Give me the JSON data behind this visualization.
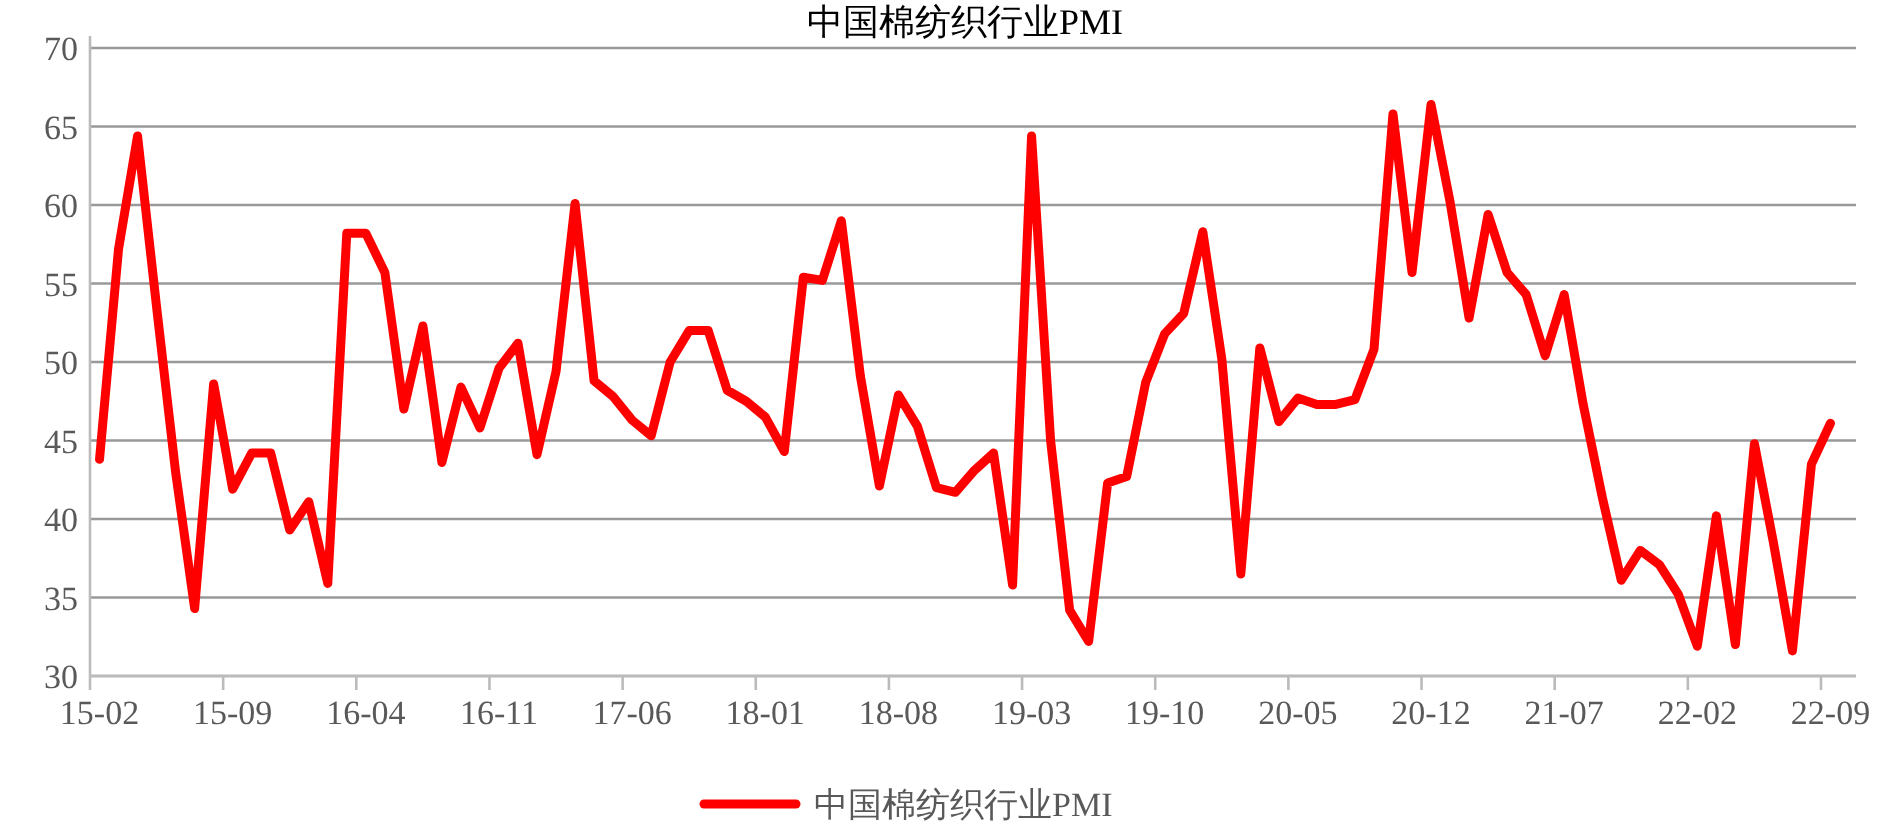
{
  "chart_data": {
    "type": "line",
    "title": "中国棉纺织行业PMI",
    "categories": [
      "15-02",
      null,
      null,
      null,
      null,
      null,
      null,
      "15-09",
      null,
      null,
      null,
      null,
      null,
      null,
      "16-04",
      null,
      null,
      null,
      null,
      null,
      null,
      "16-11",
      null,
      null,
      null,
      null,
      null,
      null,
      "17-06",
      null,
      null,
      null,
      null,
      null,
      null,
      "18-01",
      null,
      null,
      null,
      null,
      null,
      null,
      "18-08",
      null,
      null,
      null,
      null,
      null,
      null,
      "19-03",
      null,
      null,
      null,
      null,
      null,
      null,
      "19-10",
      null,
      null,
      null,
      null,
      null,
      null,
      "20-05",
      null,
      null,
      null,
      null,
      null,
      null,
      "20-12",
      null,
      null,
      null,
      null,
      null,
      null,
      "21-07",
      null,
      null,
      null,
      null,
      null,
      null,
      "22-02",
      null,
      null,
      null,
      null,
      null,
      null,
      "22-09"
    ],
    "series": [
      {
        "name": "中国棉纺织行业PMI",
        "color": "#ff0000",
        "values": [
          43.8,
          57.2,
          64.4,
          53.5,
          43.0,
          34.3,
          48.6,
          41.9,
          44.2,
          44.2,
          39.3,
          41.1,
          35.9,
          58.2,
          58.2,
          55.7,
          47.0,
          52.3,
          43.6,
          48.4,
          45.8,
          49.6,
          51.2,
          44.1,
          49.4,
          60.1,
          48.8,
          47.8,
          46.3,
          45.3,
          50.0,
          52.0,
          52.0,
          48.2,
          47.5,
          46.5,
          44.3,
          55.4,
          55.2,
          59.0,
          49.1,
          42.1,
          47.9,
          45.9,
          42.0,
          41.7,
          43.1,
          44.2,
          35.8,
          64.4,
          45.0,
          34.2,
          32.2,
          42.3,
          42.7,
          48.7,
          51.8,
          53.1,
          58.3,
          50.2,
          36.5,
          50.9,
          46.2,
          47.7,
          47.3,
          47.3,
          47.6,
          50.8,
          65.8,
          55.7,
          66.4,
          60.2,
          52.8,
          59.4,
          55.7,
          54.3,
          50.4,
          54.3,
          47.3,
          41.4,
          36.1,
          38.0,
          37.1,
          35.2,
          31.9,
          40.2,
          32.0,
          44.8,
          38.5,
          31.6,
          43.5,
          46.1
        ]
      }
    ],
    "ylim": [
      30,
      70
    ],
    "yticks": [
      30,
      35,
      40,
      45,
      50,
      55,
      60,
      65,
      70
    ],
    "grid": "y",
    "legend": "bottom",
    "marker": "none",
    "line_style": "solid"
  }
}
